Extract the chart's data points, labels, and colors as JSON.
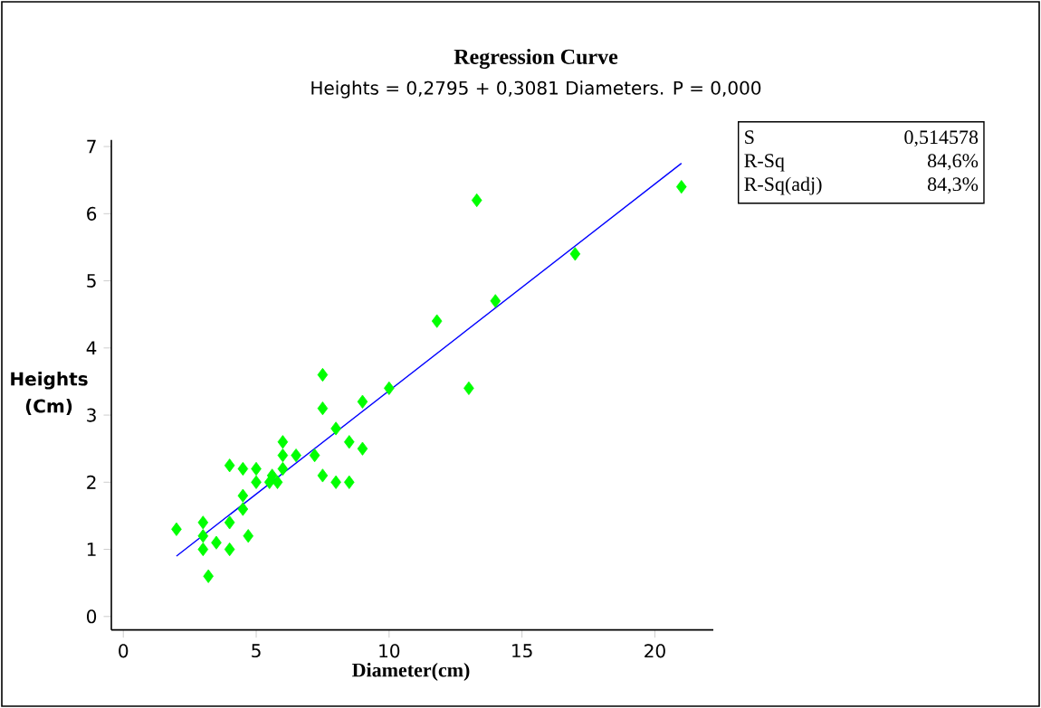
{
  "chart_data": {
    "type": "scatter",
    "title": "Regression Curve",
    "subtitle": "Heights = 0,2795 + 0,3081 Diameters. P = 0,000",
    "xlabel": "Diameter(cm)",
    "ylabel": "Heights (Cm)",
    "annotations": [
      "S",
      "0,514578",
      "R-Sq",
      "84,6%",
      "R-Sq(adj)",
      "84,3%"
    ],
    "xlim": [
      -0.45,
      22.2
    ],
    "ylim": [
      -0.2,
      7.1
    ],
    "xticks": [
      0,
      5,
      10,
      15,
      20
    ],
    "yticks": [
      0,
      1,
      2,
      3,
      4,
      5,
      6,
      7
    ],
    "marker": "diamond",
    "grid": false,
    "series": [
      {
        "color": "#00ff00",
        "x": [
          2,
          3,
          3,
          3,
          3.2,
          3.5,
          4,
          4,
          4,
          4.5,
          4.5,
          4.5,
          4.7,
          5,
          5,
          5.5,
          5.6,
          5.8,
          6,
          6,
          6,
          6.5,
          7.2,
          7.5,
          7.5,
          7.5,
          8,
          8,
          8.5,
          8.5,
          9,
          9,
          10,
          11.8,
          13,
          13.3,
          14,
          17,
          21
        ],
        "values": [
          1.3,
          1.4,
          1.2,
          1.0,
          0.6,
          1.1,
          2.25,
          1.4,
          1.0,
          2.2,
          1.8,
          1.6,
          1.2,
          2.2,
          2.0,
          2.0,
          2.1,
          2.0,
          2.6,
          2.4,
          2.2,
          2.4,
          2.4,
          3.6,
          3.1,
          2.1,
          2.8,
          2.0,
          2.6,
          2.0,
          3.2,
          2.5,
          3.4,
          4.4,
          3.4,
          6.2,
          4.7,
          5.4,
          6.4
        ]
      },
      {
        "type": "line",
        "color": "#0000ff",
        "marker": "none",
        "x": [
          2,
          21
        ],
        "values": [
          0.9,
          6.75
        ]
      }
    ]
  }
}
